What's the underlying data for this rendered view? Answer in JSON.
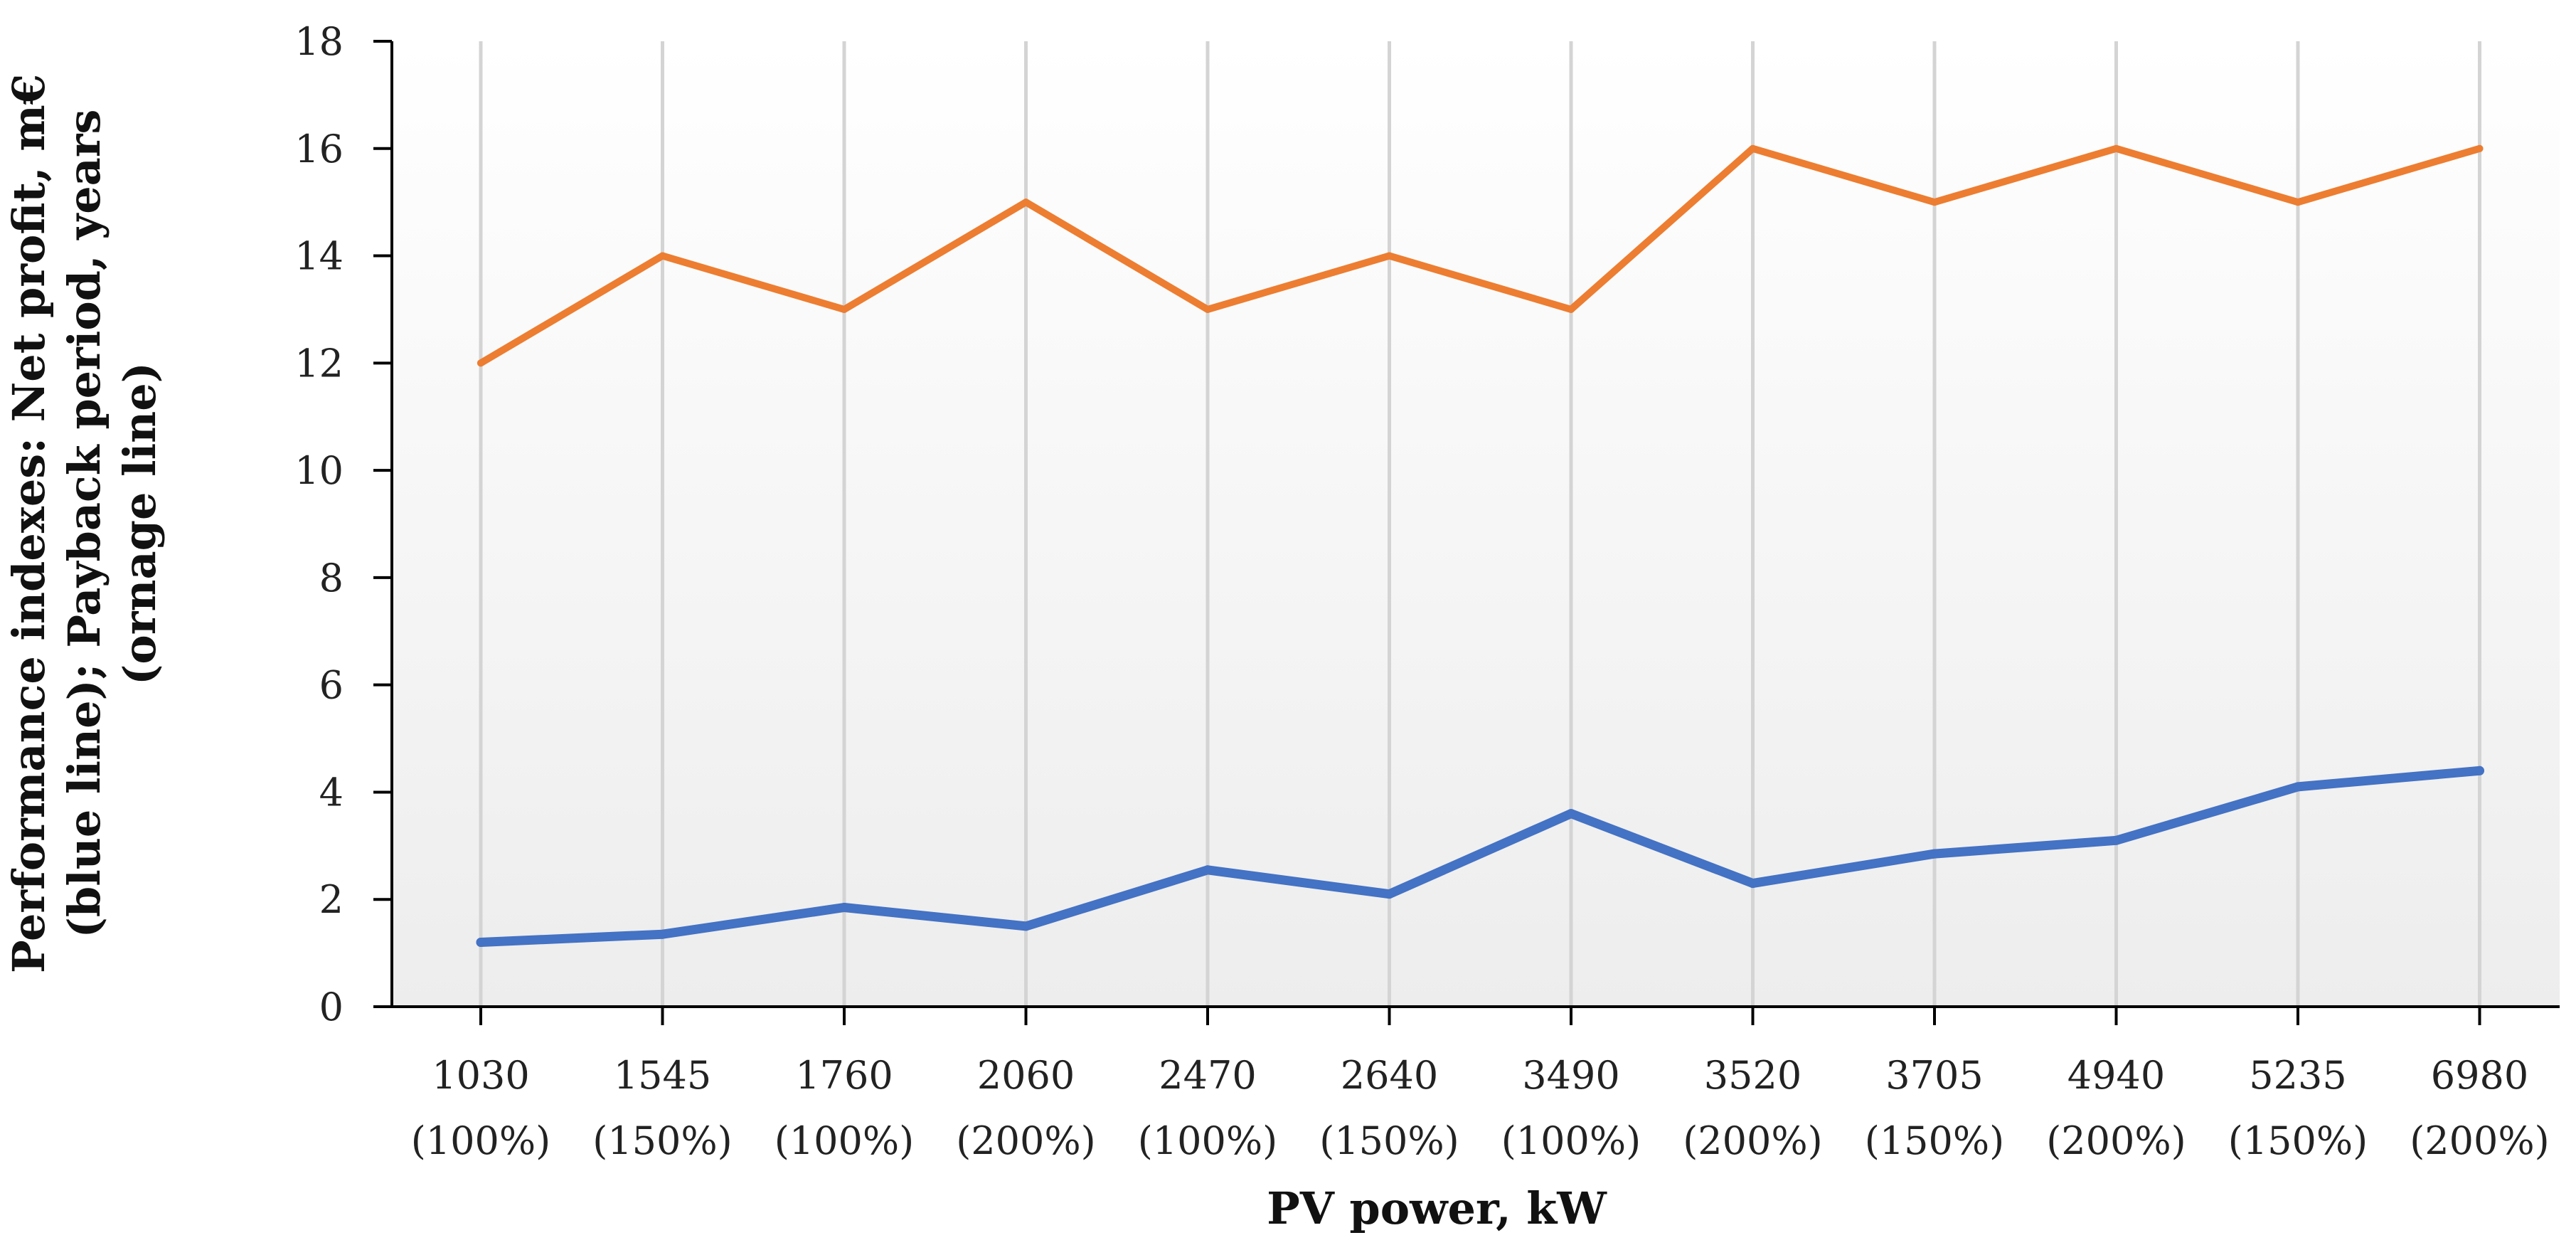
{
  "chart_data": {
    "type": "line",
    "title": "",
    "xlabel": "PV power, kW",
    "ylabel_lines": [
      "Performance indexes: Net profit, m€",
      "(blue line); Payback period, years",
      "(ornage line)"
    ],
    "categories": [
      {
        "power": "1030",
        "ratio": "(100%)"
      },
      {
        "power": "1545",
        "ratio": "(150%)"
      },
      {
        "power": "1760",
        "ratio": "(100%)"
      },
      {
        "power": "2060",
        "ratio": "(200%)"
      },
      {
        "power": "2470",
        "ratio": "(100%)"
      },
      {
        "power": "2640",
        "ratio": "(150%)"
      },
      {
        "power": "3490",
        "ratio": "(100%)"
      },
      {
        "power": "3520",
        "ratio": "(200%)"
      },
      {
        "power": "3705",
        "ratio": "(150%)"
      },
      {
        "power": "4940",
        "ratio": "(200%)"
      },
      {
        "power": "5235",
        "ratio": "(150%)"
      },
      {
        "power": "6980",
        "ratio": "(200%)"
      }
    ],
    "ylim": [
      0,
      18
    ],
    "yticks": [
      0,
      2,
      4,
      6,
      8,
      10,
      12,
      14,
      16,
      18
    ],
    "grid": "vertical",
    "series": [
      {
        "name": "Net profit, m€",
        "color": "#4472C4",
        "values": [
          1.2,
          1.35,
          1.85,
          1.5,
          2.55,
          2.1,
          3.6,
          2.3,
          2.85,
          3.1,
          4.1,
          4.4
        ]
      },
      {
        "name": "Payback period, years",
        "color": "#ED7D31",
        "values": [
          12,
          14,
          13,
          15,
          13,
          14,
          13,
          16,
          15,
          16,
          15,
          16
        ]
      }
    ]
  }
}
